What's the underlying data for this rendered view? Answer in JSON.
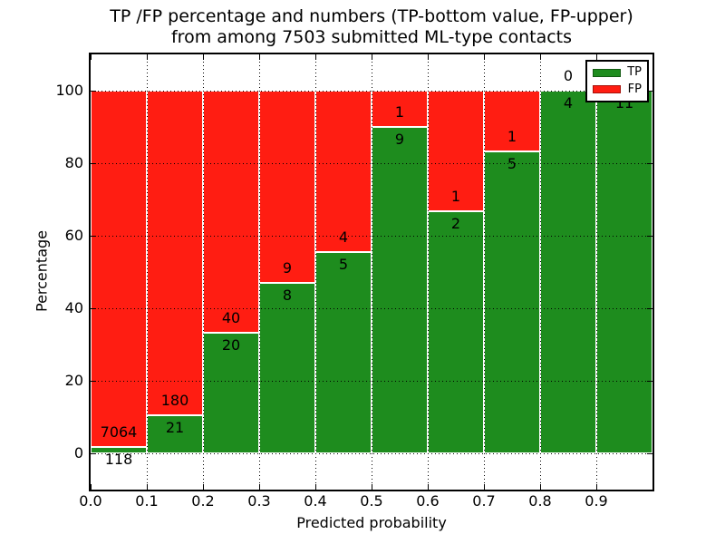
{
  "figure": {
    "title_line1": "TP /FP percentage and numbers (TP-bottom value, FP-upper)",
    "title_line2": "from among 7503 submitted ML-type contacts"
  },
  "legend": {
    "position": "upper right",
    "items": [
      {
        "label": "TP",
        "color": "#1e8c1e"
      },
      {
        "label": "FP",
        "color": "#ff1d12"
      }
    ]
  },
  "chart_data": {
    "type": "bar",
    "stacked": true,
    "normalized_to_percent": true,
    "title": "TP /FP percentage and numbers (TP-bottom value, FP-upper)\nfrom among 7503 submitted ML-type contacts",
    "xlabel": "Predicted probability",
    "ylabel": "Percentage",
    "total_submitted_contacts": 7503,
    "categories": [
      "0.0-0.1",
      "0.1-0.2",
      "0.2-0.3",
      "0.3-0.4",
      "0.4-0.5",
      "0.5-0.6",
      "0.6-0.7",
      "0.7-0.8",
      "0.8-0.9",
      "0.9-1.0"
    ],
    "series": [
      {
        "name": "TP",
        "color": "#1e8c1e",
        "values": [
          118,
          21,
          20,
          8,
          5,
          9,
          2,
          5,
          4,
          11
        ]
      },
      {
        "name": "FP",
        "color": "#ff1d12",
        "values": [
          7064,
          180,
          40,
          9,
          4,
          1,
          1,
          1,
          0,
          0
        ]
      }
    ],
    "tp_percent_by_bin": [
      1.64,
      10.45,
      33.33,
      47.06,
      55.56,
      90.0,
      66.67,
      83.33,
      100.0,
      100.0
    ],
    "x_tick_labels": [
      "0.0",
      "0.1",
      "0.2",
      "0.3",
      "0.4",
      "0.5",
      "0.6",
      "0.7",
      "0.8",
      "0.9"
    ],
    "y_tick_labels": [
      "0",
      "20",
      "40",
      "60",
      "80",
      "100"
    ],
    "xlim": [
      0.0,
      1.0
    ],
    "ylim": [
      -10,
      110
    ],
    "grid": "dotted black gridlines on both axes, drawn over bars",
    "bar_edge_color": "#ffffff",
    "legend_position": "upper right"
  }
}
